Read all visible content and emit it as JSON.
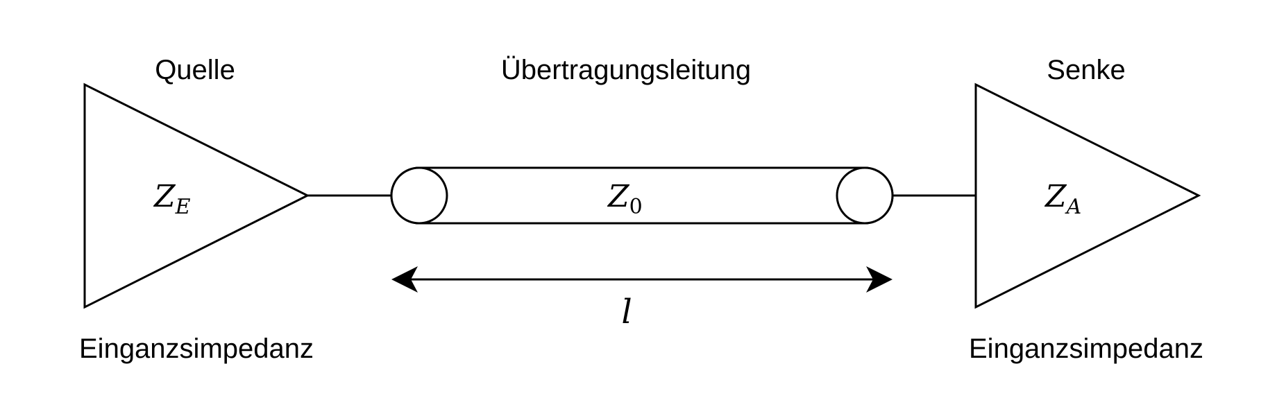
{
  "source": {
    "title": "Quelle",
    "impedance_symbol": "Z",
    "impedance_subscript": "E",
    "caption": "Einganzsimpedanz"
  },
  "line": {
    "title": "Übertragungsleitung",
    "impedance_symbol": "Z",
    "impedance_subscript": "0",
    "length_symbol": "l"
  },
  "sink": {
    "title": "Senke",
    "impedance_symbol": "Z",
    "impedance_subscript": "A",
    "caption": "Einganzsimpedanz"
  },
  "colors": {
    "stroke": "#000000",
    "fill": "#ffffff"
  }
}
